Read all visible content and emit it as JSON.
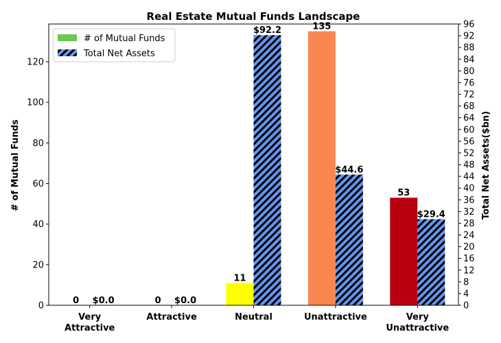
{
  "chart_data": {
    "type": "bar",
    "title": "Real Estate Mutual Funds Landscape",
    "categories": [
      "Very\nAttractive",
      "Attractive",
      "Neutral",
      "Unattractive",
      "Very\nUnattractive"
    ],
    "series": [
      {
        "name": "# of Mutual Funds",
        "axis": "left",
        "values": [
          0,
          0,
          11,
          135,
          53
        ],
        "labels": [
          "0",
          "0",
          "11",
          "135",
          "53"
        ],
        "colors": [
          "#6cc84f",
          "#6cc84f",
          "#ffff00",
          "#f98651",
          "#b80011"
        ],
        "legend_color": "#6cc84f"
      },
      {
        "name": "Total Net Assets",
        "axis": "right",
        "values": [
          0.0,
          0.0,
          92.2,
          44.6,
          29.4
        ],
        "labels": [
          "$0.0",
          "$0.0",
          "$92.2",
          "$44.6",
          "$29.4"
        ],
        "color": "#6495ed",
        "hatch": "diagonal"
      }
    ],
    "ylabel_left": "# of Mutual Funds",
    "ylabel_right": "Total Net Assets($bn)",
    "ylim_left": [
      0,
      138.6
    ],
    "ylim_right": [
      0,
      96
    ],
    "yticks_left": [
      0,
      20,
      40,
      60,
      80,
      100,
      120
    ],
    "yticks_right": [
      0,
      4,
      8,
      12,
      16,
      20,
      24,
      28,
      32,
      36,
      40,
      44,
      48,
      52,
      56,
      60,
      64,
      68,
      72,
      76,
      80,
      84,
      88,
      92,
      96
    ],
    "legend_position": "top-left",
    "grid": false
  }
}
